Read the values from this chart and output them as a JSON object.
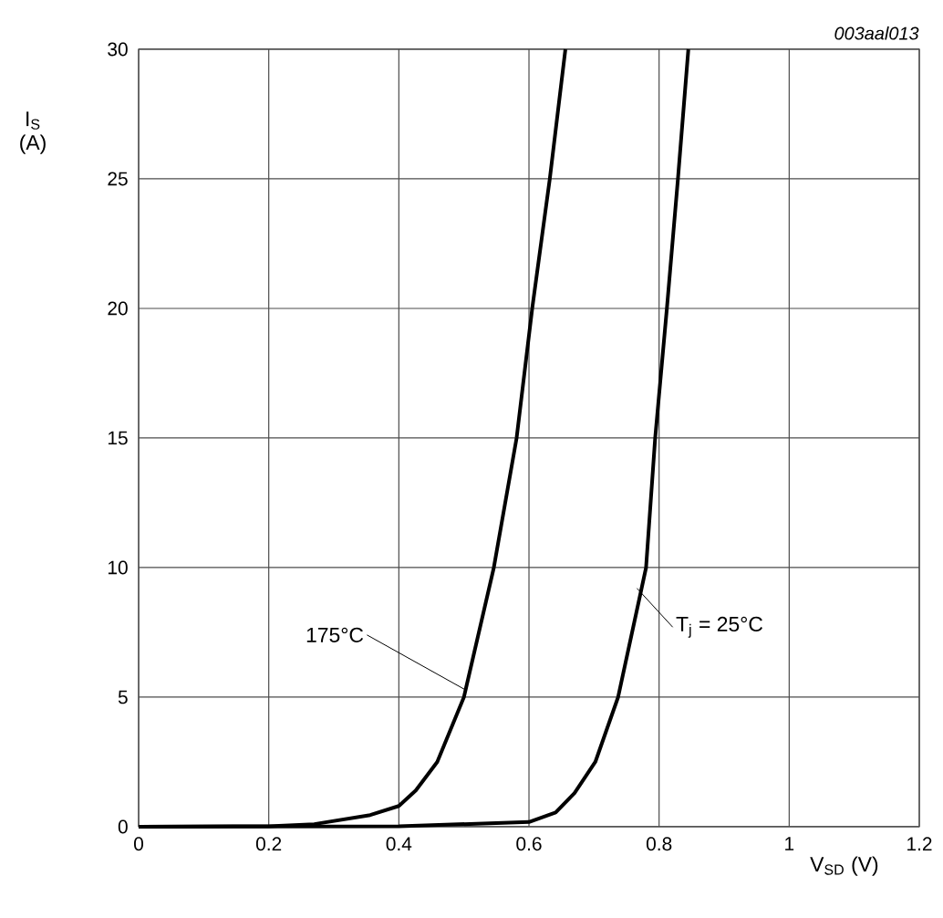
{
  "chart_data": {
    "type": "line",
    "xlabel": "V$_{SD}$ (V)",
    "ylabel": "I$_{S}$ (A)",
    "annotations": [
      {
        "text": "175°C",
        "x": 0.501,
        "y": 5.3
      },
      {
        "text": "T$_{j}$ = 25°C",
        "x": 0.766,
        "y": 9.2
      },
      "003aal013"
    ],
    "series": [
      {
        "color": "#000000",
        "x": [
          0,
          0.2,
          0.27,
          0.356,
          0.4,
          0.426,
          0.459,
          0.5,
          0.546,
          0.581,
          0.605,
          0.632,
          0.656
        ],
        "values": [
          0,
          0.02,
          0.1,
          0.45,
          0.8,
          1.4,
          2.5,
          5,
          10,
          15,
          20,
          25,
          30
        ]
      },
      {
        "color": "#000000",
        "x": [
          0,
          0.4,
          0.6,
          0.641,
          0.67,
          0.702,
          0.737,
          0.78,
          0.794,
          0.812,
          0.829,
          0.845
        ],
        "values": [
          0,
          0.02,
          0.18,
          0.55,
          1.3,
          2.5,
          5,
          10,
          15,
          20,
          25,
          30
        ]
      }
    ],
    "xlim": [
      0,
      1.2
    ],
    "ylim": [
      0,
      30
    ],
    "xticks": [
      0,
      0.2,
      0.4,
      0.6,
      0.8,
      1,
      1.2
    ],
    "yticks": [
      0,
      5,
      10,
      15,
      20,
      25,
      30
    ],
    "grid": true,
    "marker": "none",
    "line_style": "solid"
  }
}
